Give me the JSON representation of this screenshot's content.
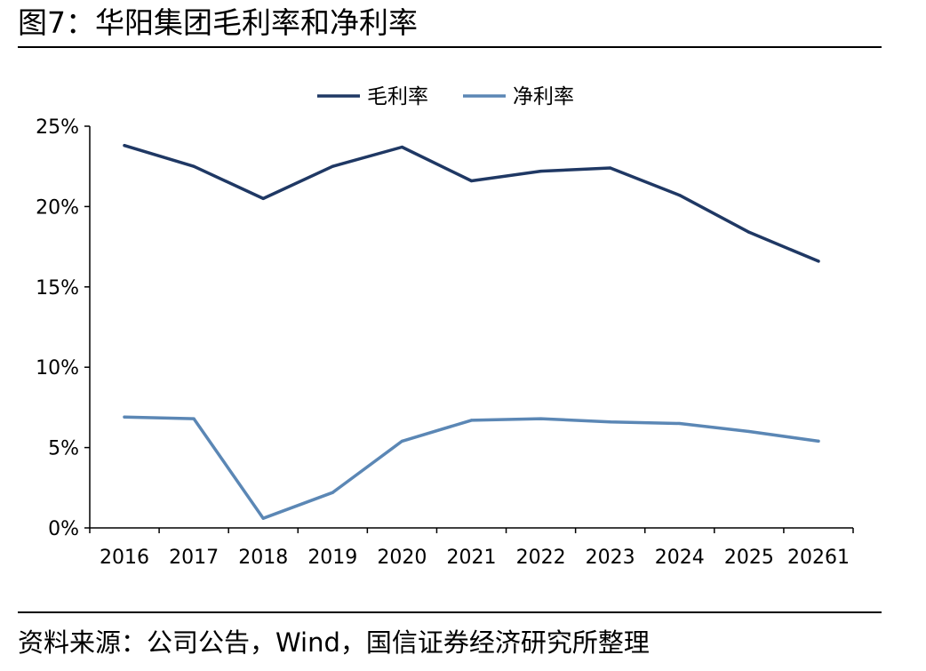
{
  "figure": {
    "title": "图7：华阳集团毛利率和净利率",
    "source": "资料来源：公司公告，Wind，国信证券经济研究所整理"
  },
  "chart_data": {
    "type": "line",
    "categories": [
      "2016",
      "2017",
      "2018",
      "2019",
      "2020",
      "2021",
      "2022",
      "2023",
      "2024",
      "2025",
      "20261"
    ],
    "series": [
      {
        "name": "毛利率",
        "color": "#1f3864",
        "values": [
          23.8,
          22.5,
          20.5,
          22.5,
          23.7,
          21.6,
          22.2,
          22.4,
          20.7,
          18.4,
          16.6
        ]
      },
      {
        "name": "净利率",
        "color": "#5b87b5",
        "values": [
          6.9,
          6.8,
          0.6,
          2.2,
          5.4,
          6.7,
          6.8,
          6.6,
          6.5,
          6.0,
          5.4
        ]
      }
    ],
    "y_ticks": [
      "0%",
      "5%",
      "10%",
      "15%",
      "20%",
      "25%"
    ],
    "ylim": [
      0,
      25
    ],
    "grid": false,
    "legend_position": "top-center",
    "xlabel": "",
    "ylabel": ""
  }
}
